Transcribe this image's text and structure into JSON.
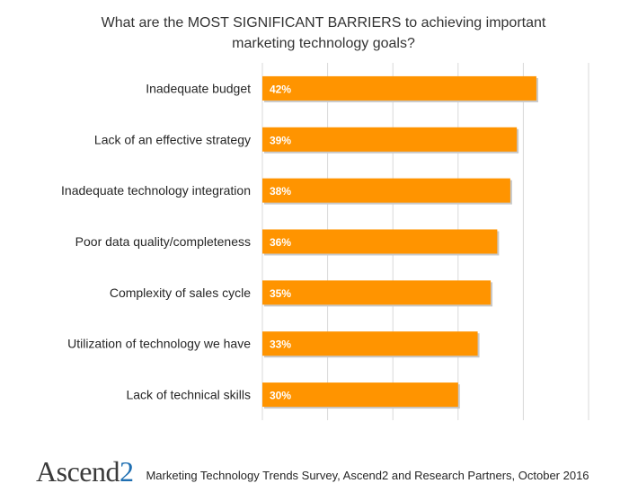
{
  "title_line1": "What are the MOST SIGNIFICANT  BARRIERS to achieving important",
  "title_line2": "marketing technology goals?",
  "chart_data": {
    "type": "bar",
    "orientation": "horizontal",
    "categories": [
      "Inadequate budget",
      "Lack of an effective strategy",
      "Inadequate technology integration",
      "Poor data quality/completeness",
      "Complexity of sales cycle",
      "Utilization of technology we have",
      "Lack of technical skills"
    ],
    "values": [
      42,
      39,
      38,
      36,
      35,
      33,
      30
    ],
    "value_labels": [
      "42%",
      "39%",
      "38%",
      "36%",
      "35%",
      "33%",
      "30%"
    ],
    "xlim": [
      0,
      50
    ],
    "grid": true,
    "bar_color": "#FF9400",
    "gridline_color": "#D9D9D9"
  },
  "footer": {
    "logo_text": "Ascend",
    "logo_suffix": "2",
    "source": "Marketing Technology Trends Survey, Ascend2 and Research Partners, October 2016"
  },
  "colors": {
    "logo_blue": "#1F6FB2",
    "text": "#262626"
  }
}
